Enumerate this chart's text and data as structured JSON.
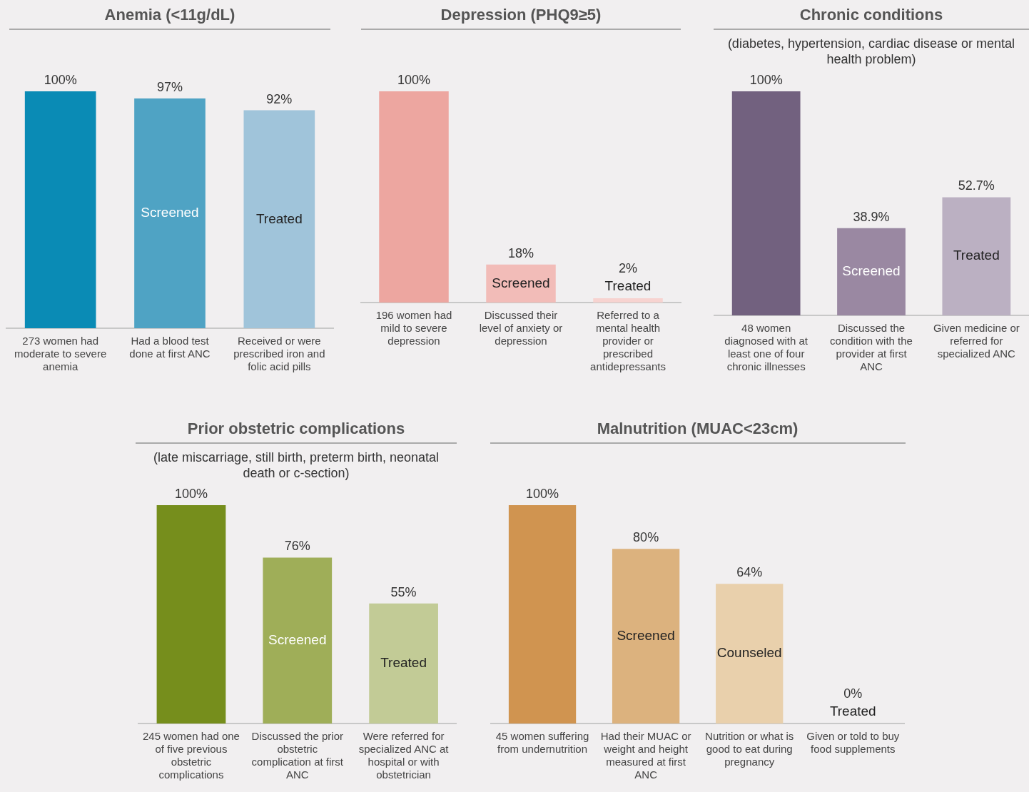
{
  "chart_data": [
    {
      "type": "bar",
      "title": "Anemia (<11g/dL)",
      "categories": [
        "273 women had moderate to severe anemia",
        "Had a blood test done at first ANC",
        "Received or were prescribed iron and folic acid pills"
      ],
      "values": [
        100,
        97,
        92
      ],
      "colors": [
        "#0a8bb5",
        "#4fa3c4",
        "#a0c4da"
      ],
      "value_labels": [
        "100%",
        "97%",
        "92%"
      ],
      "ylim": [
        0,
        100
      ],
      "tick_labels": "x",
      "grid": false,
      "legend": false,
      "annotations": [
        "Screened",
        "Treated"
      ]
    },
    {
      "type": "bar",
      "title": "Depression (PHQ9≥5)",
      "categories": [
        "196 women had mild to severe depression",
        "Discussed their level of anxiety or depression",
        "Referred to a mental health provider or prescribed antidepressants"
      ],
      "values": [
        100,
        18,
        2
      ],
      "colors": [
        "#eda6a0",
        "#f2bcb8",
        "#f7d3d0"
      ],
      "value_labels": [
        "100%",
        "18%",
        "2%"
      ],
      "ylim": [
        0,
        100
      ],
      "tick_labels": "x",
      "grid": false,
      "legend": false,
      "annotations": [
        "Screened",
        "Treated"
      ]
    },
    {
      "type": "bar",
      "title": "Chronic conditions",
      "subtitle": "(diabetes, hypertension, cardiac disease or mental health problem)",
      "categories": [
        "48 women diagnosed with at least one of four chronic illnesses",
        "Discussed the condition with the provider at first ANC",
        "Given medicine or referred for specialized ANC"
      ],
      "values": [
        100,
        38.9,
        52.7
      ],
      "colors": [
        "#72617f",
        "#9a88a2",
        "#bbb0c2"
      ],
      "value_labels": [
        "100%",
        "38.9%",
        "52.7%"
      ],
      "ylim": [
        0,
        100
      ],
      "tick_labels": "x",
      "grid": false,
      "legend": false,
      "annotations": [
        "Screened",
        "Treated"
      ]
    },
    {
      "type": "bar",
      "title": "Prior obstetric complications",
      "subtitle": "(late miscarriage, still birth, preterm birth, neonatal death or c-section)",
      "categories": [
        "245 women had one of five previous obstetric complications",
        "Discussed the prior obstetric complication at first ANC",
        "Were referred for specialized ANC at hospital or with obstetrician"
      ],
      "values": [
        100,
        76,
        55
      ],
      "colors": [
        "#768e1c",
        "#9fae58",
        "#c2cb96"
      ],
      "value_labels": [
        "100%",
        "76%",
        "55%"
      ],
      "ylim": [
        0,
        100
      ],
      "tick_labels": "x",
      "grid": false,
      "legend": false,
      "annotations": [
        "Screened",
        "Treated"
      ]
    },
    {
      "type": "bar",
      "title": "Malnutrition (MUAC<23cm)",
      "categories": [
        "45 women suffering from undernutrition",
        "Had their MUAC or weight and height measured at first ANC",
        "Nutrition or what is good to eat during pregnancy",
        "Given or told to buy food supplements"
      ],
      "values": [
        100,
        80,
        64,
        0
      ],
      "colors": [
        "#d09450",
        "#dcb27e",
        "#e9d0ac",
        "#f0e0c8"
      ],
      "value_labels": [
        "100%",
        "80%",
        "64%",
        "0%"
      ],
      "ylim": [
        0,
        100
      ],
      "tick_labels": "x",
      "grid": false,
      "legend": false,
      "annotations": [
        "Screened",
        "Counseled",
        "Treated"
      ]
    }
  ]
}
